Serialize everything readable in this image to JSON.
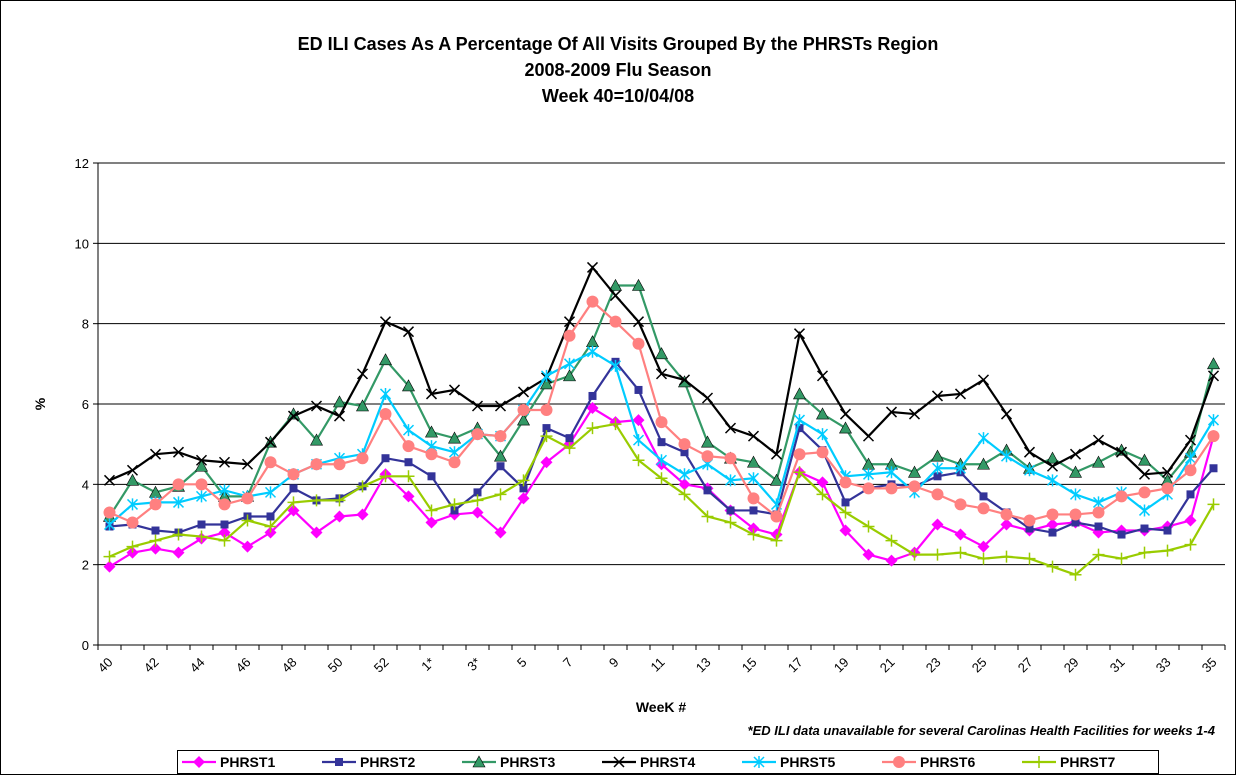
{
  "chart_data": {
    "type": "line",
    "title": [
      "ED ILI Cases As A Percentage Of All Visits Grouped By the  PHRSTs Region",
      "2008-2009 Flu Season",
      "Week 40=10/04/08"
    ],
    "y_label": "%",
    "x_label": "WeeK #",
    "note": "*ED ILI data unavailable for several Carolinas Health Facilities for weeks 1-4",
    "categories": [
      "40",
      null,
      "42",
      null,
      "44",
      null,
      "46",
      null,
      "48",
      null,
      "50",
      null,
      "52",
      null,
      "1*",
      null,
      "3*",
      null,
      "5",
      null,
      "7",
      null,
      "9",
      null,
      "11",
      null,
      "13",
      null,
      "15",
      null,
      "17",
      null,
      "19",
      null,
      "21",
      null,
      "23",
      null,
      "25",
      null,
      "27",
      null,
      "29",
      null,
      "31",
      null,
      "33",
      null,
      "35"
    ],
    "ylim": [
      0,
      12
    ],
    "yticks": [
      0,
      2,
      4,
      6,
      8,
      10,
      12
    ],
    "grid": true,
    "legend": "bottom",
    "series": [
      {
        "name": "PHRST1",
        "color": "#ff00ff",
        "marker": "diamond",
        "values": [
          1.95,
          2.3,
          2.4,
          2.3,
          2.65,
          2.8,
          2.45,
          2.8,
          3.35,
          2.8,
          3.2,
          3.25,
          4.25,
          3.7,
          3.05,
          3.25,
          3.3,
          2.8,
          3.65,
          4.55,
          5.0,
          5.9,
          5.55,
          5.6,
          4.5,
          4.0,
          3.9,
          3.35,
          2.9,
          2.75,
          4.3,
          4.05,
          2.85,
          2.25,
          2.1,
          2.3,
          3.0,
          2.75,
          2.45,
          3.0,
          2.85,
          3.0,
          3.05,
          2.8,
          2.85,
          2.85,
          2.95,
          3.1,
          5.2
        ]
      },
      {
        "name": "PHRST2",
        "color": "#333399",
        "marker": "square",
        "values": [
          2.95,
          3.0,
          2.85,
          2.8,
          3.0,
          3.0,
          3.2,
          3.2,
          3.9,
          3.6,
          3.65,
          3.95,
          4.65,
          4.55,
          4.2,
          3.35,
          3.8,
          4.45,
          3.9,
          5.4,
          5.15,
          6.2,
          7.05,
          6.35,
          5.05,
          4.8,
          3.85,
          3.35,
          3.35,
          3.25,
          5.4,
          4.85,
          3.55,
          3.9,
          4.0,
          3.95,
          4.2,
          4.3,
          3.7,
          3.3,
          2.9,
          2.8,
          3.05,
          2.95,
          2.75,
          2.9,
          2.85,
          3.75,
          4.4
        ]
      },
      {
        "name": "PHRST3",
        "color": "#339966",
        "marker": "triangle",
        "values": [
          3.2,
          4.1,
          3.8,
          3.95,
          4.45,
          3.7,
          3.7,
          5.05,
          5.75,
          5.1,
          6.05,
          5.95,
          7.1,
          6.45,
          5.3,
          5.15,
          5.4,
          4.7,
          5.6,
          6.5,
          6.7,
          7.55,
          8.95,
          8.95,
          7.25,
          6.55,
          5.05,
          4.65,
          4.55,
          4.1,
          6.25,
          5.75,
          5.4,
          4.5,
          4.5,
          4.3,
          4.7,
          4.5,
          4.5,
          4.85,
          4.4,
          4.65,
          4.3,
          4.55,
          4.85,
          4.6,
          4.1,
          4.8,
          7.0
        ]
      },
      {
        "name": "PHRST4",
        "color": "#000000",
        "marker": "x",
        "values": [
          4.1,
          4.35,
          4.75,
          4.8,
          4.6,
          4.55,
          4.5,
          5.05,
          5.7,
          5.95,
          5.7,
          6.75,
          8.05,
          7.8,
          6.25,
          6.35,
          5.95,
          5.95,
          6.3,
          6.65,
          8.05,
          9.4,
          8.7,
          8.05,
          6.75,
          6.6,
          6.15,
          5.4,
          5.2,
          4.75,
          7.75,
          6.7,
          5.75,
          5.2,
          5.8,
          5.75,
          6.2,
          6.25,
          6.6,
          5.75,
          4.8,
          4.45,
          4.75,
          5.1,
          4.8,
          4.25,
          4.3,
          5.1,
          6.7
        ]
      },
      {
        "name": "PHRST5",
        "color": "#00ccff",
        "marker": "star",
        "values": [
          3.0,
          3.5,
          3.55,
          3.55,
          3.7,
          3.85,
          3.7,
          3.8,
          4.25,
          4.5,
          4.65,
          4.75,
          6.25,
          5.35,
          4.95,
          4.8,
          5.25,
          5.2,
          5.85,
          6.7,
          7.0,
          7.3,
          6.95,
          5.1,
          4.6,
          4.25,
          4.5,
          4.1,
          4.15,
          3.5,
          5.6,
          5.25,
          4.2,
          4.25,
          4.3,
          3.8,
          4.4,
          4.4,
          5.15,
          4.7,
          4.35,
          4.1,
          3.75,
          3.55,
          3.8,
          3.35,
          3.75,
          4.65,
          5.6
        ]
      },
      {
        "name": "PHRST6",
        "color": "#ff8080",
        "marker": "circle",
        "values": [
          3.3,
          3.05,
          3.5,
          4.0,
          4.0,
          3.5,
          3.65,
          4.55,
          4.25,
          4.5,
          4.5,
          4.65,
          5.75,
          4.95,
          4.75,
          4.55,
          5.25,
          5.2,
          5.85,
          5.85,
          7.7,
          8.55,
          8.05,
          7.5,
          5.55,
          5.0,
          4.7,
          4.65,
          3.65,
          3.2,
          4.75,
          4.8,
          4.05,
          3.9,
          3.9,
          3.95,
          3.75,
          3.5,
          3.4,
          3.25,
          3.1,
          3.25,
          3.25,
          3.3,
          3.7,
          3.8,
          3.9,
          4.35,
          5.2
        ]
      },
      {
        "name": "PHRST7",
        "color": "#99cc00",
        "marker": "plus",
        "values": [
          2.2,
          2.45,
          2.6,
          2.75,
          2.7,
          2.6,
          3.1,
          2.95,
          3.55,
          3.6,
          3.6,
          3.95,
          4.2,
          4.2,
          3.35,
          3.5,
          3.6,
          3.75,
          4.1,
          5.2,
          4.9,
          5.4,
          5.5,
          4.6,
          4.15,
          3.75,
          3.2,
          3.05,
          2.75,
          2.6,
          4.3,
          3.75,
          3.3,
          2.95,
          2.6,
          2.25,
          2.25,
          2.3,
          2.15,
          2.2,
          2.15,
          1.95,
          1.75,
          2.25,
          2.15,
          2.3,
          2.35,
          2.5,
          3.5
        ]
      }
    ]
  }
}
